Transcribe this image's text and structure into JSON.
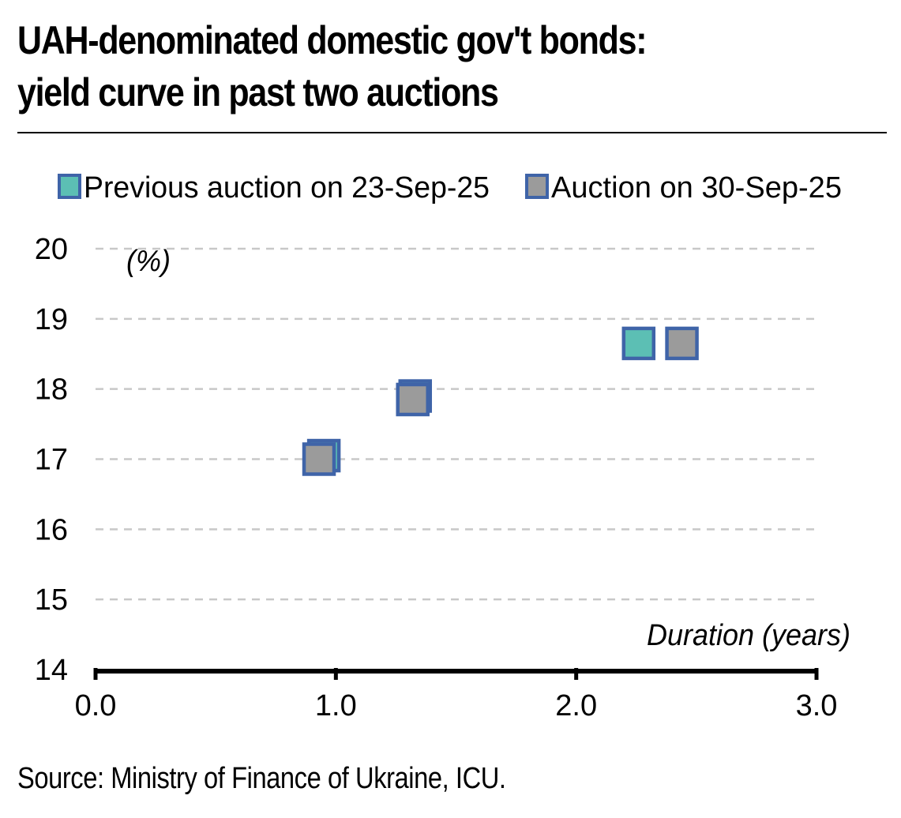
{
  "title_line1": "UAH-denominated domestic gov't bonds:",
  "title_line2": "yield curve in past two auctions",
  "source": "Source: Ministry of Finance of Ukraine, ICU.",
  "chart_data": {
    "type": "scatter",
    "title": "UAH-denominated domestic gov't bonds: yield curve in past two auctions",
    "ylabel": "(%)",
    "xlabel": "Duration (years)",
    "xlim": [
      0.0,
      3.0
    ],
    "ylim": [
      14,
      20
    ],
    "x_ticks": [
      "0.0",
      "1.0",
      "2.0",
      "3.0"
    ],
    "y_ticks": [
      "14",
      "15",
      "16",
      "17",
      "18",
      "19",
      "20"
    ],
    "grid": "horizontal dashed",
    "legend_position": "top",
    "series": [
      {
        "name": "Previous auction on 23-Sep-25",
        "color": "#5cbfb4",
        "border_color": "#3f64a8",
        "points": [
          {
            "x": 0.95,
            "y": 17.05
          },
          {
            "x": 1.33,
            "y": 17.9
          },
          {
            "x": 2.26,
            "y": 18.65
          }
        ]
      },
      {
        "name": "Auction on 30-Sep-25",
        "color": "#9b9b9b",
        "border_color": "#3f64a8",
        "points": [
          {
            "x": 0.93,
            "y": 17.0
          },
          {
            "x": 1.32,
            "y": 17.85
          },
          {
            "x": 2.44,
            "y": 18.65
          }
        ]
      }
    ]
  }
}
